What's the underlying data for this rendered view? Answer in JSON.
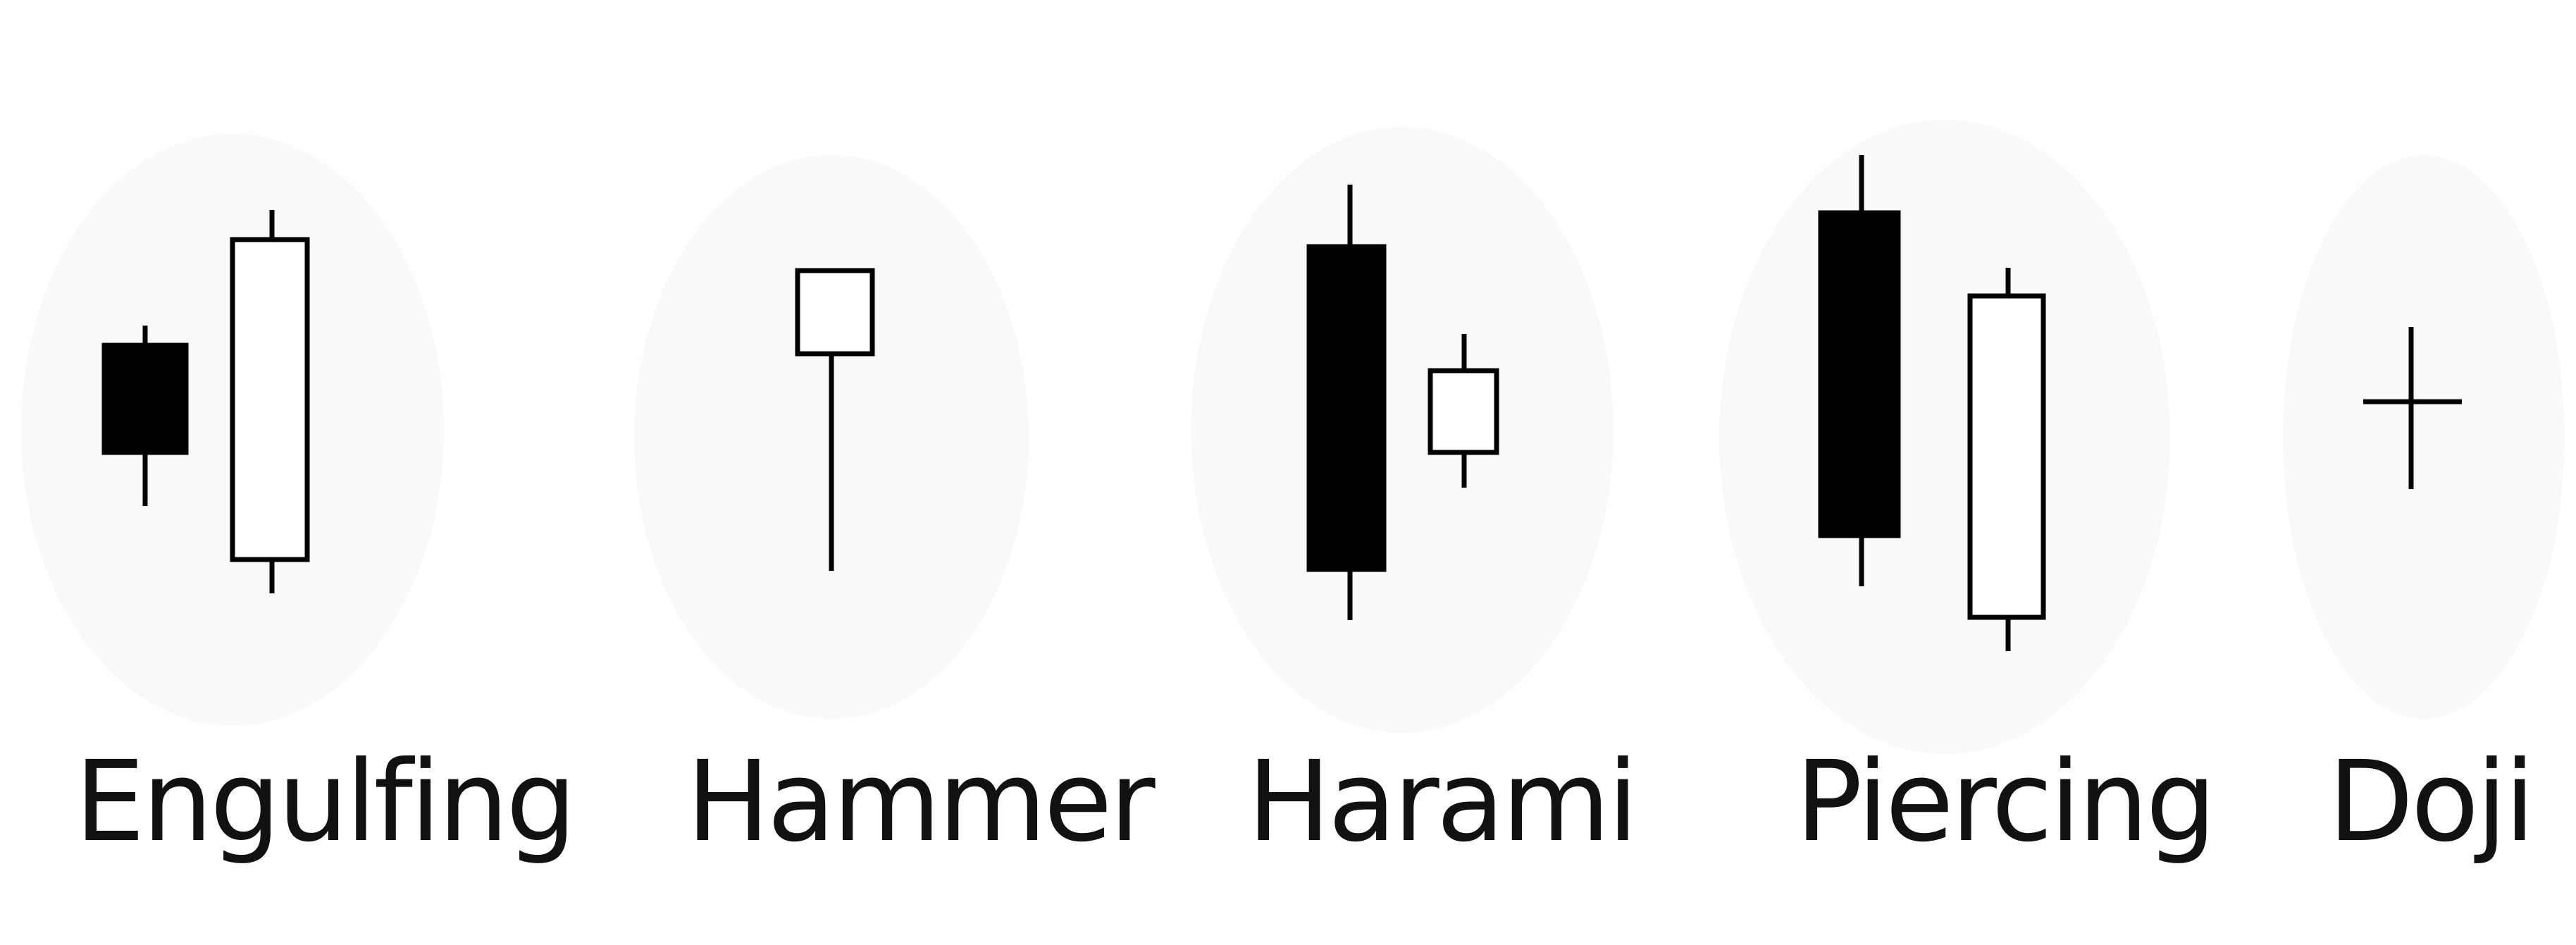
{
  "patterns": [
    {
      "name": "Engulfing"
    },
    {
      "name": "Hammer"
    },
    {
      "name": "Harami"
    },
    {
      "name": "Piercing"
    },
    {
      "name": "Doji"
    }
  ],
  "colors": {
    "bearish_fill": "#000000",
    "bullish_fill": "#ffffff",
    "stroke": "#000000",
    "text": "#111111"
  }
}
